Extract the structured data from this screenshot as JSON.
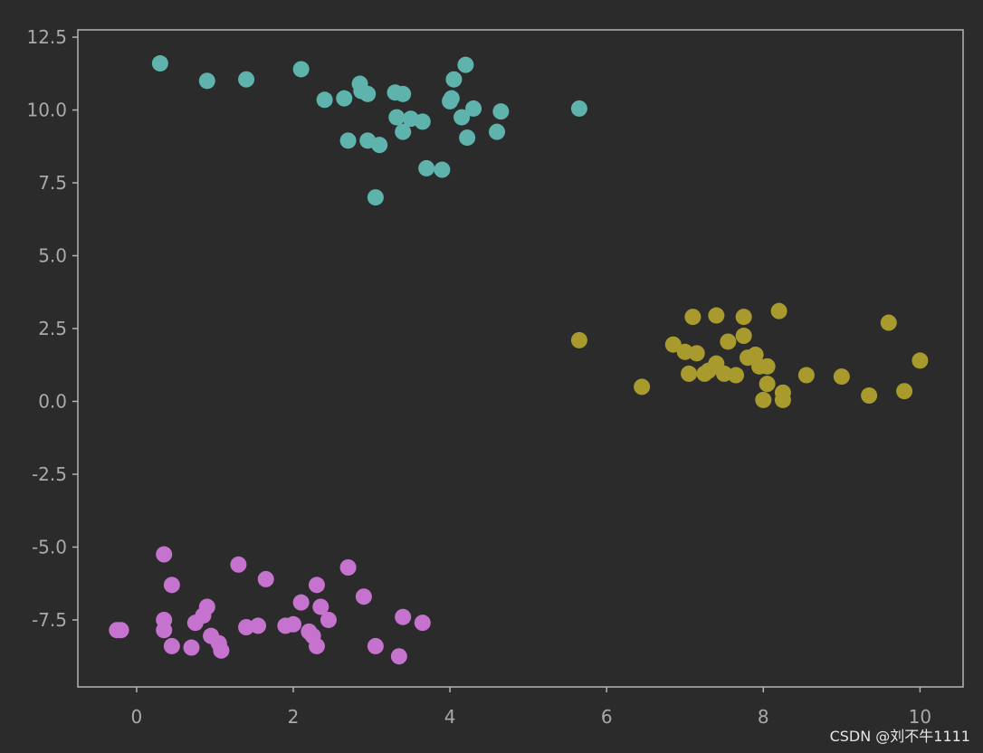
{
  "watermark": "CSDN @刘不牛1111",
  "chart_data": {
    "type": "scatter",
    "xlim": [
      -0.75,
      10.55
    ],
    "ylim": [
      -9.8,
      12.75
    ],
    "xticks": [
      0,
      2,
      4,
      6,
      8,
      10
    ],
    "yticks": [
      12.5,
      10.0,
      7.5,
      5.0,
      2.5,
      0.0,
      -2.5,
      -5.0,
      -7.5
    ],
    "xtick_labels": [
      "0",
      "2",
      "4",
      "6",
      "8",
      "10"
    ],
    "ytick_labels": [
      "12.5",
      "10.0",
      "7.5",
      "5.0",
      "2.5",
      "0.0",
      "-2.5",
      "-5.0",
      "-7.5"
    ],
    "grid": false,
    "colors": {
      "background": "#2b2b2b",
      "axes": "#b4b4b4",
      "tick_text": "#a9a9a9"
    },
    "series": [
      {
        "color": "#5fb3ad",
        "points": [
          [
            0.3,
            11.6
          ],
          [
            0.9,
            11.0
          ],
          [
            1.4,
            11.05
          ],
          [
            2.1,
            11.4
          ],
          [
            2.4,
            10.35
          ],
          [
            2.65,
            10.4
          ],
          [
            2.7,
            8.95
          ],
          [
            2.85,
            10.9
          ],
          [
            2.87,
            10.65
          ],
          [
            2.95,
            10.55
          ],
          [
            2.95,
            8.95
          ],
          [
            3.1,
            8.8
          ],
          [
            3.05,
            7.0
          ],
          [
            3.3,
            10.6
          ],
          [
            3.4,
            10.55
          ],
          [
            3.32,
            9.75
          ],
          [
            3.4,
            9.25
          ],
          [
            3.5,
            9.7
          ],
          [
            3.65,
            9.6
          ],
          [
            3.7,
            8.0
          ],
          [
            3.9,
            7.95
          ],
          [
            4.0,
            10.3
          ],
          [
            4.02,
            10.4
          ],
          [
            4.05,
            11.05
          ],
          [
            4.15,
            9.75
          ],
          [
            4.2,
            11.55
          ],
          [
            4.22,
            9.05
          ],
          [
            4.3,
            10.05
          ],
          [
            4.6,
            9.25
          ],
          [
            4.65,
            9.95
          ],
          [
            5.65,
            10.05
          ]
        ]
      },
      {
        "color": "#a99a2e",
        "points": [
          [
            5.65,
            2.1
          ],
          [
            6.45,
            0.5
          ],
          [
            6.85,
            1.95
          ],
          [
            7.0,
            1.7
          ],
          [
            7.05,
            0.95
          ],
          [
            7.1,
            2.9
          ],
          [
            7.15,
            1.65
          ],
          [
            7.25,
            0.95
          ],
          [
            7.3,
            1.05
          ],
          [
            7.4,
            2.95
          ],
          [
            7.4,
            1.3
          ],
          [
            7.5,
            0.95
          ],
          [
            7.55,
            2.05
          ],
          [
            7.65,
            0.9
          ],
          [
            7.75,
            2.25
          ],
          [
            7.75,
            2.9
          ],
          [
            7.8,
            1.5
          ],
          [
            7.9,
            1.6
          ],
          [
            7.95,
            1.2
          ],
          [
            8.0,
            0.05
          ],
          [
            8.05,
            1.2
          ],
          [
            8.05,
            0.6
          ],
          [
            8.2,
            3.1
          ],
          [
            8.25,
            0.3
          ],
          [
            8.25,
            0.05
          ],
          [
            8.55,
            0.9
          ],
          [
            9.0,
            0.85
          ],
          [
            9.35,
            0.2
          ],
          [
            9.6,
            2.7
          ],
          [
            9.8,
            0.35
          ],
          [
            10.0,
            1.4
          ]
        ]
      },
      {
        "color": "#c573cf",
        "points": [
          [
            -0.25,
            -7.85
          ],
          [
            -0.2,
            -7.85
          ],
          [
            0.35,
            -5.25
          ],
          [
            0.35,
            -7.5
          ],
          [
            0.35,
            -7.85
          ],
          [
            0.45,
            -8.4
          ],
          [
            0.45,
            -6.3
          ],
          [
            0.7,
            -8.45
          ],
          [
            0.75,
            -7.6
          ],
          [
            0.85,
            -7.35
          ],
          [
            0.9,
            -7.05
          ],
          [
            0.95,
            -8.05
          ],
          [
            1.05,
            -8.3
          ],
          [
            1.08,
            -8.55
          ],
          [
            1.3,
            -5.6
          ],
          [
            1.4,
            -7.75
          ],
          [
            1.55,
            -7.7
          ],
          [
            1.65,
            -6.1
          ],
          [
            1.9,
            -7.7
          ],
          [
            2.0,
            -7.65
          ],
          [
            2.1,
            -6.9
          ],
          [
            2.2,
            -7.9
          ],
          [
            2.25,
            -8.05
          ],
          [
            2.3,
            -6.3
          ],
          [
            2.3,
            -8.4
          ],
          [
            2.35,
            -7.05
          ],
          [
            2.45,
            -7.5
          ],
          [
            2.7,
            -5.7
          ],
          [
            2.9,
            -6.7
          ],
          [
            3.05,
            -8.4
          ],
          [
            3.35,
            -8.75
          ],
          [
            3.4,
            -7.4
          ],
          [
            3.65,
            -7.6
          ]
        ]
      }
    ]
  }
}
